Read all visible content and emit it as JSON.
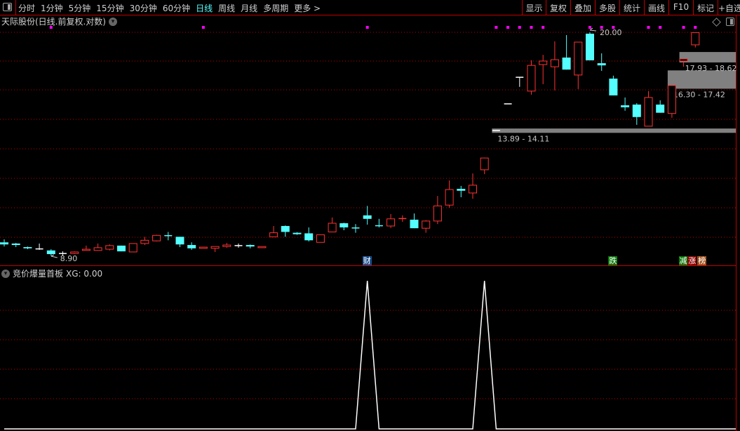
{
  "toolbar": {
    "tabs": [
      "分时",
      "1分钟",
      "5分钟",
      "15分钟",
      "30分钟",
      "60分钟",
      "日线",
      "周线",
      "月线",
      "多周期",
      "更多 >"
    ],
    "active_tab": "日线",
    "right_buttons": [
      "显示",
      "复权",
      "叠加",
      "多股",
      "统计",
      "画线",
      "F10",
      "标记",
      "+自选"
    ]
  },
  "main_panel": {
    "title": "天际股份(日线.前复权.对数)"
  },
  "indicator_panel": {
    "title": "竞价爆量首板",
    "readout": "XG: 0.00"
  },
  "colors": {
    "up": "#ff3232",
    "down": "#54ffff",
    "flat": "#ffffff",
    "grid": "#c00000",
    "zone": "#808080",
    "signal_dot": "#ff00ff",
    "indicator_line": "#ffffff"
  },
  "chart_data": [
    {
      "type": "candlestick",
      "scale": "log",
      "grid": true,
      "ohlc": [
        [
          9.34,
          9.44,
          9.2,
          9.27
        ],
        [
          9.3,
          9.32,
          9.18,
          9.25
        ],
        [
          9.18,
          9.2,
          9.11,
          9.14
        ],
        [
          9.12,
          9.3,
          9.09,
          9.12
        ],
        [
          9.07,
          9.11,
          8.9,
          8.95
        ],
        [
          8.97,
          9.04,
          8.9,
          8.97
        ],
        [
          8.97,
          9.04,
          8.95,
          9.02
        ],
        [
          9.07,
          9.23,
          9.07,
          9.11
        ],
        [
          9.07,
          9.3,
          9.07,
          9.16
        ],
        [
          9.11,
          9.27,
          9.07,
          9.23
        ],
        [
          9.23,
          9.23,
          9.04,
          9.04
        ],
        [
          9.02,
          9.3,
          9.02,
          9.3
        ],
        [
          9.3,
          9.53,
          9.25,
          9.41
        ],
        [
          9.39,
          9.6,
          9.37,
          9.58
        ],
        [
          9.57,
          9.7,
          9.41,
          9.55
        ],
        [
          9.53,
          9.53,
          9.18,
          9.27
        ],
        [
          9.25,
          9.34,
          9.09,
          9.14
        ],
        [
          9.14,
          9.18,
          9.14,
          9.18
        ],
        [
          9.14,
          9.2,
          9.02,
          9.2
        ],
        [
          9.2,
          9.32,
          9.16,
          9.25
        ],
        [
          9.23,
          9.3,
          9.16,
          9.23
        ],
        [
          9.25,
          9.27,
          9.14,
          9.2
        ],
        [
          9.16,
          9.2,
          9.16,
          9.2
        ],
        [
          9.53,
          9.91,
          9.53,
          9.67
        ],
        [
          9.91,
          9.93,
          9.53,
          9.7
        ],
        [
          9.67,
          9.69,
          9.6,
          9.62
        ],
        [
          9.65,
          9.86,
          9.37,
          9.41
        ],
        [
          9.34,
          9.6,
          9.34,
          9.6
        ],
        [
          9.7,
          10.22,
          9.7,
          10.01
        ],
        [
          10.01,
          10.03,
          9.76,
          9.86
        ],
        [
          9.84,
          9.98,
          9.67,
          9.82
        ],
        [
          10.3,
          10.66,
          9.96,
          10.17
        ],
        [
          9.92,
          10.17,
          9.86,
          9.9
        ],
        [
          9.91,
          10.35,
          9.84,
          10.17
        ],
        [
          10.16,
          10.3,
          10.06,
          10.18
        ],
        [
          10.14,
          10.37,
          9.83,
          9.83
        ],
        [
          9.83,
          10.12,
          9.67,
          10.09
        ],
        [
          10.09,
          11.05,
          9.98,
          10.66
        ],
        [
          10.69,
          11.69,
          10.59,
          11.31
        ],
        [
          11.34,
          11.46,
          11.0,
          11.26
        ],
        [
          11.17,
          11.99,
          10.94,
          11.49
        ],
        [
          12.15,
          12.68,
          11.96,
          12.68
        ],
        [
          14.01,
          14.01,
          14.01,
          14.01
        ],
        [
          15.43,
          15.43,
          15.43,
          15.43
        ],
        [
          16.99,
          16.99,
          16.41,
          16.99
        ],
        [
          16.16,
          18.07,
          15.95,
          17.74
        ],
        [
          17.79,
          18.43,
          16.57,
          18.02
        ],
        [
          17.65,
          19.35,
          16.2,
          18.11
        ],
        [
          18.25,
          19.8,
          17.47,
          17.47
        ],
        [
          17.13,
          19.3,
          16.28,
          19.3
        ],
        [
          19.9,
          20.0,
          18.07,
          18.07
        ],
        [
          17.88,
          18.53,
          17.39,
          17.74
        ],
        [
          16.91,
          17.09,
          15.91,
          15.91
        ],
        [
          15.35,
          15.79,
          15.05,
          15.24
        ],
        [
          15.39,
          15.47,
          14.3,
          14.71
        ],
        [
          14.23,
          16.16,
          14.23,
          15.79
        ],
        [
          15.39,
          15.63,
          14.94,
          14.94
        ],
        [
          14.9,
          16.49,
          14.67,
          16.49
        ],
        [
          18.02,
          18.16,
          17.65,
          18.16
        ],
        [
          19.11,
          19.98,
          18.93,
          19.98
        ]
      ],
      "high_label": {
        "index": 50,
        "value": "20.00"
      },
      "low_label": {
        "index": 4,
        "value": "8.90"
      },
      "zones": [
        {
          "from_index": 42,
          "low": 13.89,
          "high": 14.11,
          "label": "13.89 - 14.11"
        },
        {
          "from_index": 57,
          "low": 16.3,
          "high": 17.42,
          "label": "16.30 - 17.42"
        },
        {
          "from_index": 58,
          "low": 17.93,
          "high": 18.62,
          "label": "17.93 - 18.62"
        }
      ],
      "signal_dots": [
        4,
        17,
        31,
        42,
        43,
        44,
        45,
        46,
        50,
        51,
        52,
        55,
        56,
        58,
        59
      ],
      "markers": [
        {
          "index": 31,
          "text": "财",
          "color": "#1a4e8c"
        },
        {
          "index": 52,
          "text": "跌",
          "color": "#0a7a0a"
        },
        {
          "index": 58,
          "text": "减",
          "color": "#0a7a0a"
        },
        {
          "index": 59,
          "text": "涨",
          "color": "#8b0000"
        },
        {
          "index": 59,
          "text": "榜",
          "color": "#a0521e"
        }
      ]
    },
    {
      "type": "line",
      "series": [
        {
          "name": "XG",
          "values": [
            0,
            0,
            0,
            0,
            0,
            0,
            0,
            0,
            0,
            0,
            0,
            0,
            0,
            0,
            0,
            0,
            0,
            0,
            0,
            0,
            0,
            0,
            0,
            0,
            0,
            0,
            0,
            0,
            0,
            0,
            0,
            1,
            0,
            0,
            0,
            0,
            0,
            0,
            0,
            0,
            0,
            1,
            0,
            0,
            0,
            0,
            0,
            0,
            0,
            0,
            0,
            0,
            0,
            0,
            0,
            0,
            0,
            0,
            0,
            0
          ]
        }
      ],
      "ylim": [
        0,
        1
      ],
      "grid": true
    }
  ]
}
